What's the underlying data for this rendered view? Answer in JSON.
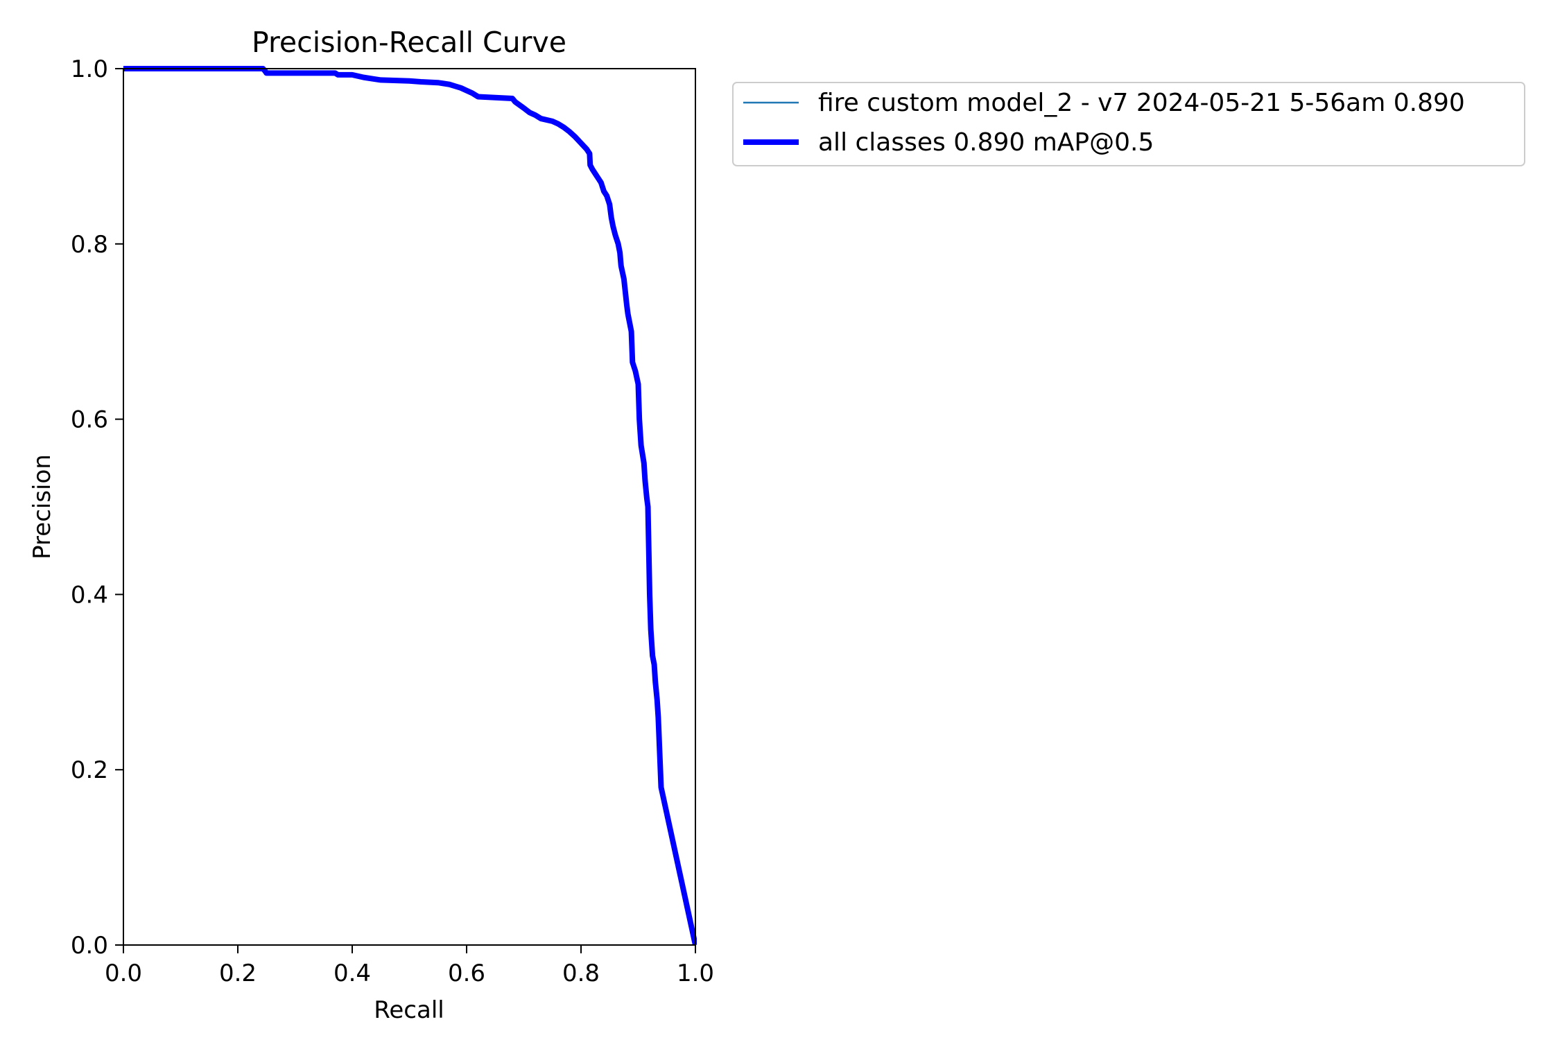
{
  "chart_data": {
    "type": "line",
    "title": "Precision-Recall Curve",
    "xlabel": "Recall",
    "ylabel": "Precision",
    "xlim": [
      0.0,
      1.0
    ],
    "ylim": [
      0.0,
      1.0
    ],
    "xticks": [
      "0.0",
      "0.2",
      "0.4",
      "0.6",
      "0.8",
      "1.0"
    ],
    "yticks": [
      "0.0",
      "0.2",
      "0.4",
      "0.6",
      "0.8",
      "1.0"
    ],
    "grid": false,
    "legend_position": "outside-top-right",
    "series": [
      {
        "name": "fire custom model_2 - v7 2024-05-21 5-56am 0.890",
        "color": "#1f77b4",
        "style": "thin",
        "x": [
          0.0,
          0.05,
          0.1,
          0.15,
          0.2,
          0.244,
          0.248,
          0.25,
          0.3,
          0.35,
          0.37,
          0.375,
          0.4,
          0.42,
          0.44,
          0.45,
          0.5,
          0.52,
          0.55,
          0.57,
          0.58,
          0.59,
          0.6,
          0.61,
          0.615,
          0.62,
          0.65,
          0.68,
          0.685,
          0.7,
          0.71,
          0.72,
          0.73,
          0.75,
          0.76,
          0.77,
          0.78,
          0.79,
          0.8,
          0.81,
          0.815,
          0.816,
          0.82,
          0.825,
          0.83,
          0.835,
          0.84,
          0.845,
          0.85,
          0.853,
          0.856,
          0.86,
          0.865,
          0.868,
          0.87,
          0.875,
          0.88,
          0.882,
          0.888,
          0.89,
          0.895,
          0.9,
          0.902,
          0.905,
          0.91,
          0.912,
          0.915,
          0.917,
          0.92,
          0.922,
          0.925,
          0.928,
          0.93,
          0.933,
          0.935,
          0.94,
          1.0
        ],
        "y": [
          1.0,
          1.0,
          1.0,
          1.0,
          1.0,
          1.0,
          0.997,
          0.995,
          0.995,
          0.995,
          0.995,
          0.993,
          0.993,
          0.99,
          0.988,
          0.987,
          0.986,
          0.985,
          0.984,
          0.982,
          0.98,
          0.978,
          0.975,
          0.972,
          0.97,
          0.968,
          0.967,
          0.966,
          0.962,
          0.955,
          0.95,
          0.947,
          0.943,
          0.94,
          0.937,
          0.933,
          0.928,
          0.922,
          0.915,
          0.908,
          0.903,
          0.89,
          0.885,
          0.88,
          0.875,
          0.87,
          0.86,
          0.855,
          0.845,
          0.83,
          0.82,
          0.81,
          0.8,
          0.79,
          0.775,
          0.76,
          0.73,
          0.72,
          0.7,
          0.665,
          0.655,
          0.64,
          0.6,
          0.57,
          0.55,
          0.53,
          0.51,
          0.5,
          0.4,
          0.36,
          0.33,
          0.32,
          0.3,
          0.28,
          0.26,
          0.18,
          0.0
        ]
      },
      {
        "name": "all classes 0.890 mAP@0.5",
        "color": "#0000ff",
        "style": "thick",
        "x": [
          0.0,
          0.05,
          0.1,
          0.15,
          0.2,
          0.244,
          0.248,
          0.25,
          0.3,
          0.35,
          0.37,
          0.375,
          0.4,
          0.42,
          0.44,
          0.45,
          0.5,
          0.52,
          0.55,
          0.57,
          0.58,
          0.59,
          0.6,
          0.61,
          0.615,
          0.62,
          0.65,
          0.68,
          0.685,
          0.7,
          0.71,
          0.72,
          0.73,
          0.75,
          0.76,
          0.77,
          0.78,
          0.79,
          0.8,
          0.81,
          0.815,
          0.816,
          0.82,
          0.825,
          0.83,
          0.835,
          0.84,
          0.845,
          0.85,
          0.853,
          0.856,
          0.86,
          0.865,
          0.868,
          0.87,
          0.875,
          0.88,
          0.882,
          0.888,
          0.89,
          0.895,
          0.9,
          0.902,
          0.905,
          0.91,
          0.912,
          0.915,
          0.917,
          0.92,
          0.922,
          0.925,
          0.928,
          0.93,
          0.933,
          0.935,
          0.94,
          1.0
        ],
        "y": [
          1.0,
          1.0,
          1.0,
          1.0,
          1.0,
          1.0,
          0.997,
          0.995,
          0.995,
          0.995,
          0.995,
          0.993,
          0.993,
          0.99,
          0.988,
          0.987,
          0.986,
          0.985,
          0.984,
          0.982,
          0.98,
          0.978,
          0.975,
          0.972,
          0.97,
          0.968,
          0.967,
          0.966,
          0.962,
          0.955,
          0.95,
          0.947,
          0.943,
          0.94,
          0.937,
          0.933,
          0.928,
          0.922,
          0.915,
          0.908,
          0.903,
          0.89,
          0.885,
          0.88,
          0.875,
          0.87,
          0.86,
          0.855,
          0.845,
          0.83,
          0.82,
          0.81,
          0.8,
          0.79,
          0.775,
          0.76,
          0.73,
          0.72,
          0.7,
          0.665,
          0.655,
          0.64,
          0.6,
          0.57,
          0.55,
          0.53,
          0.51,
          0.5,
          0.4,
          0.36,
          0.33,
          0.32,
          0.3,
          0.28,
          0.26,
          0.18,
          0.0
        ]
      }
    ]
  }
}
